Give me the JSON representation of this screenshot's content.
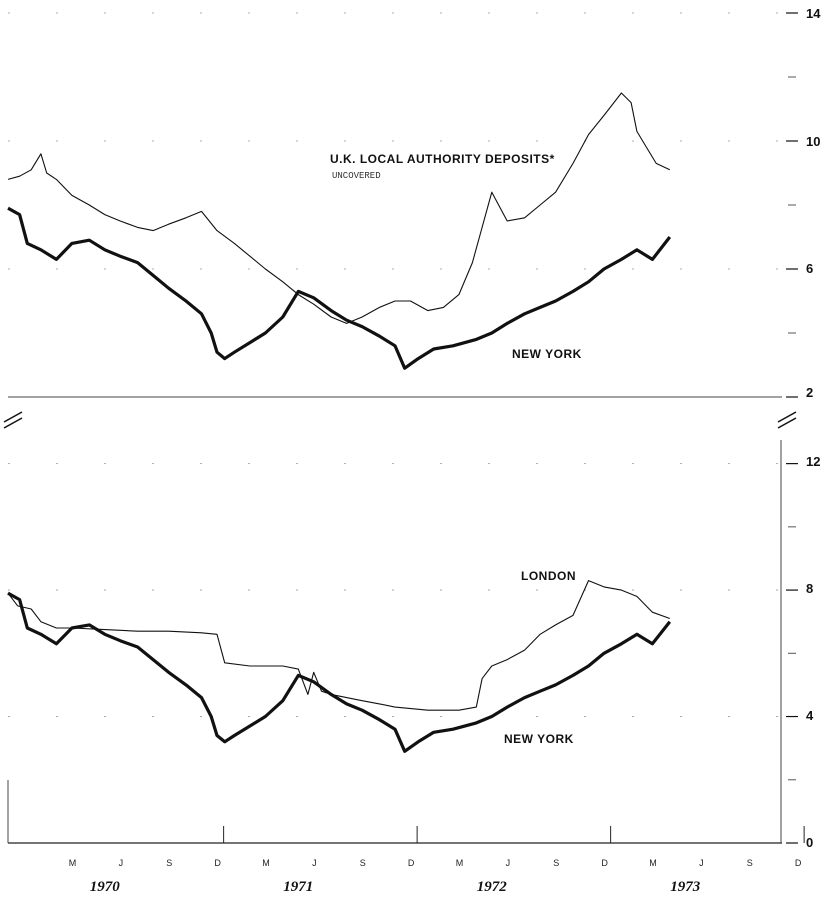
{
  "chart_data": [
    {
      "type": "line",
      "panel": "top",
      "y_ticks": [
        "2",
        "6",
        "10",
        "14"
      ],
      "ylim": [
        2,
        14
      ],
      "x_range": [
        "1970-01",
        "1973-12"
      ],
      "series": [
        {
          "name": "U.K. LOCAL AUTHORITY DEPOSITS*",
          "note": "UNCOVERED",
          "stroke": "thin",
          "x": [
            1970.0,
            1970.06,
            1970.12,
            1970.17,
            1970.2,
            1970.25,
            1970.33,
            1970.42,
            1970.5,
            1970.58,
            1970.67,
            1970.75,
            1970.83,
            1970.92,
            1971.0,
            1971.08,
            1971.17,
            1971.25,
            1971.33,
            1971.42,
            1971.5,
            1971.58,
            1971.67,
            1971.75,
            1971.83,
            1971.92,
            1972.0,
            1972.08,
            1972.17,
            1972.25,
            1972.33,
            1972.4,
            1972.45,
            1972.5,
            1972.58,
            1972.67,
            1972.75,
            1972.83,
            1972.92,
            1973.0,
            1973.08,
            1973.17,
            1973.22,
            1973.25,
            1973.3,
            1973.35,
            1973.42
          ],
          "values": [
            8.8,
            8.9,
            9.1,
            9.6,
            9.0,
            8.8,
            8.3,
            8.0,
            7.7,
            7.5,
            7.3,
            7.2,
            7.4,
            7.6,
            7.8,
            7.2,
            6.8,
            6.4,
            6.0,
            5.6,
            5.2,
            4.9,
            4.5,
            4.3,
            4.5,
            4.8,
            5.0,
            5.0,
            4.7,
            4.8,
            5.2,
            6.2,
            7.3,
            8.4,
            7.5,
            7.6,
            8.0,
            8.4,
            9.3,
            10.2,
            10.8,
            11.5,
            11.2,
            10.3,
            9.8,
            9.3,
            9.1
          ]
        },
        {
          "name": "NEW YORK",
          "stroke": "thick",
          "x": [
            1970.0,
            1970.06,
            1970.1,
            1970.17,
            1970.25,
            1970.33,
            1970.42,
            1970.5,
            1970.58,
            1970.67,
            1970.75,
            1970.83,
            1970.92,
            1971.0,
            1971.05,
            1971.08,
            1971.12,
            1971.17,
            1971.25,
            1971.33,
            1971.42,
            1971.5,
            1971.58,
            1971.67,
            1971.75,
            1971.83,
            1971.92,
            1972.0,
            1972.05,
            1972.12,
            1972.2,
            1972.3,
            1972.42,
            1972.5,
            1972.58,
            1972.67,
            1972.75,
            1972.83,
            1972.92,
            1973.0,
            1973.08,
            1973.17,
            1973.25,
            1973.33,
            1973.42
          ],
          "values": [
            7.9,
            7.7,
            6.8,
            6.6,
            6.3,
            6.8,
            6.9,
            6.6,
            6.4,
            6.2,
            5.8,
            5.4,
            5.0,
            4.6,
            4.0,
            3.4,
            3.2,
            3.4,
            3.7,
            4.0,
            4.5,
            5.3,
            5.1,
            4.7,
            4.4,
            4.2,
            3.9,
            3.6,
            2.9,
            3.2,
            3.5,
            3.6,
            3.8,
            4.0,
            4.3,
            4.6,
            4.8,
            5.0,
            5.3,
            5.6,
            6.0,
            6.3,
            6.6,
            6.3,
            7.0
          ]
        }
      ],
      "labels": {
        "series1": "U.K. LOCAL AUTHORITY DEPOSITS*",
        "series1_note": "UNCOVERED",
        "series2": "NEW YORK"
      }
    },
    {
      "type": "line",
      "panel": "bottom",
      "y_ticks": [
        "0",
        "4",
        "8",
        "12"
      ],
      "ylim": [
        0,
        13
      ],
      "x_range": [
        "1970-01",
        "1973-12"
      ],
      "series": [
        {
          "name": "LONDON",
          "stroke": "thin",
          "x": [
            1970.0,
            1970.05,
            1970.12,
            1970.17,
            1970.25,
            1970.33,
            1970.5,
            1970.67,
            1970.83,
            1971.0,
            1971.08,
            1971.12,
            1971.25,
            1971.42,
            1971.5,
            1971.55,
            1971.58,
            1971.62,
            1971.67,
            1971.75,
            1971.83,
            1971.92,
            1972.0,
            1972.17,
            1972.33,
            1972.42,
            1972.45,
            1972.5,
            1972.58,
            1972.67,
            1972.75,
            1972.83,
            1972.92,
            1973.0,
            1973.08,
            1973.17,
            1973.25,
            1973.33,
            1973.42
          ],
          "values": [
            7.9,
            7.5,
            7.4,
            7.0,
            6.8,
            6.8,
            6.75,
            6.7,
            6.7,
            6.65,
            6.6,
            5.7,
            5.6,
            5.6,
            5.5,
            4.7,
            5.4,
            4.8,
            4.7,
            4.6,
            4.5,
            4.4,
            4.3,
            4.2,
            4.2,
            4.3,
            5.2,
            5.6,
            5.8,
            6.1,
            6.6,
            6.9,
            7.2,
            8.3,
            8.1,
            8.0,
            7.8,
            7.3,
            7.1
          ]
        },
        {
          "name": "NEW YORK",
          "stroke": "thick",
          "x": [
            1970.0,
            1970.06,
            1970.1,
            1970.17,
            1970.25,
            1970.33,
            1970.42,
            1970.5,
            1970.58,
            1970.67,
            1970.75,
            1970.83,
            1970.92,
            1971.0,
            1971.05,
            1971.08,
            1971.12,
            1971.17,
            1971.25,
            1971.33,
            1971.42,
            1971.5,
            1971.58,
            1971.67,
            1971.75,
            1971.83,
            1971.92,
            1972.0,
            1972.05,
            1972.12,
            1972.2,
            1972.3,
            1972.42,
            1972.5,
            1972.58,
            1972.67,
            1972.75,
            1972.83,
            1972.92,
            1973.0,
            1973.08,
            1973.17,
            1973.25,
            1973.33,
            1973.42
          ],
          "values": [
            7.9,
            7.7,
            6.8,
            6.6,
            6.3,
            6.8,
            6.9,
            6.6,
            6.4,
            6.2,
            5.8,
            5.4,
            5.0,
            4.6,
            4.0,
            3.4,
            3.2,
            3.4,
            3.7,
            4.0,
            4.5,
            5.3,
            5.1,
            4.7,
            4.4,
            4.2,
            3.9,
            3.6,
            2.9,
            3.2,
            3.5,
            3.6,
            3.8,
            4.0,
            4.3,
            4.6,
            4.8,
            5.0,
            5.3,
            5.6,
            6.0,
            6.3,
            6.6,
            6.3,
            7.0
          ]
        }
      ],
      "labels": {
        "series1": "LONDON",
        "series2": "NEW YORK"
      }
    }
  ],
  "x_axis": {
    "month_labels": [
      "M",
      "J",
      "S",
      "D",
      "M",
      "J",
      "S",
      "D",
      "M",
      "J",
      "S",
      "D",
      "M",
      "J",
      "S",
      "D"
    ],
    "years": [
      "1970",
      "1971",
      "1972",
      "1973"
    ]
  }
}
